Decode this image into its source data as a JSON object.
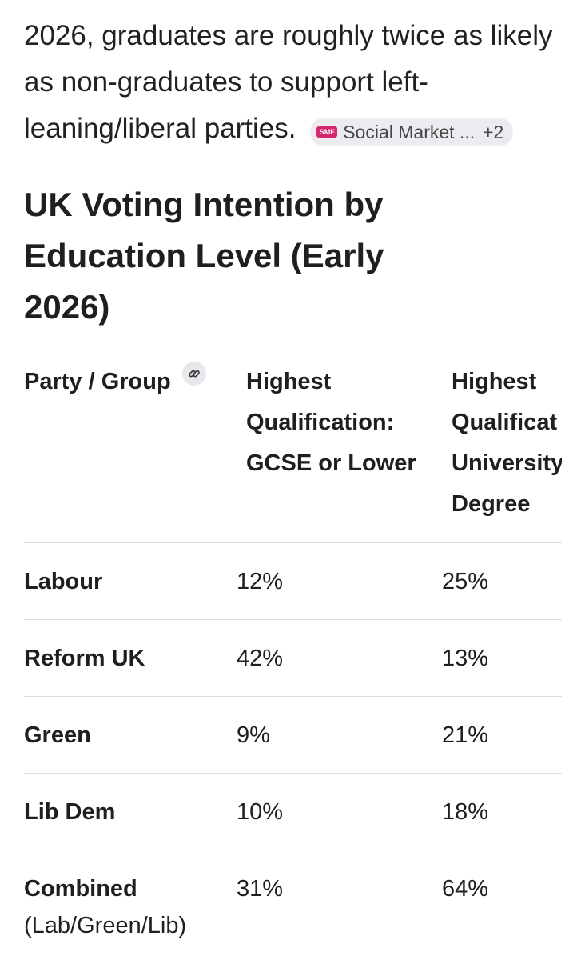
{
  "intro": {
    "text": "2026, graduates are roughly twice as likely as non-graduates to support left-leaning/liberal parties.",
    "source_chip": {
      "logo_text": "SMF",
      "label": "Social Market ...",
      "more": "+2",
      "logo_color": "#d6246e"
    }
  },
  "heading": "UK Voting Intention by Education Level (Early 2026)",
  "table": {
    "headers": {
      "party": "Party / Group",
      "col1": "Highest Qualification: GCSE or Lower",
      "col2_lines": [
        "Highest",
        "Qualificat",
        "University",
        "Degree"
      ]
    },
    "rows": [
      {
        "party": "Labour",
        "gcse": "12%",
        "degree": "25%"
      },
      {
        "party": "Reform UK",
        "gcse": "42%",
        "degree": "13%"
      },
      {
        "party": "Green",
        "gcse": "9%",
        "degree": "21%"
      },
      {
        "party": "Lib Dem",
        "gcse": "10%",
        "degree": "18%"
      },
      {
        "party": "Combined",
        "party_sub": "(Lab/Green/Lib)",
        "gcse": "31%",
        "degree": "64%"
      }
    ]
  }
}
